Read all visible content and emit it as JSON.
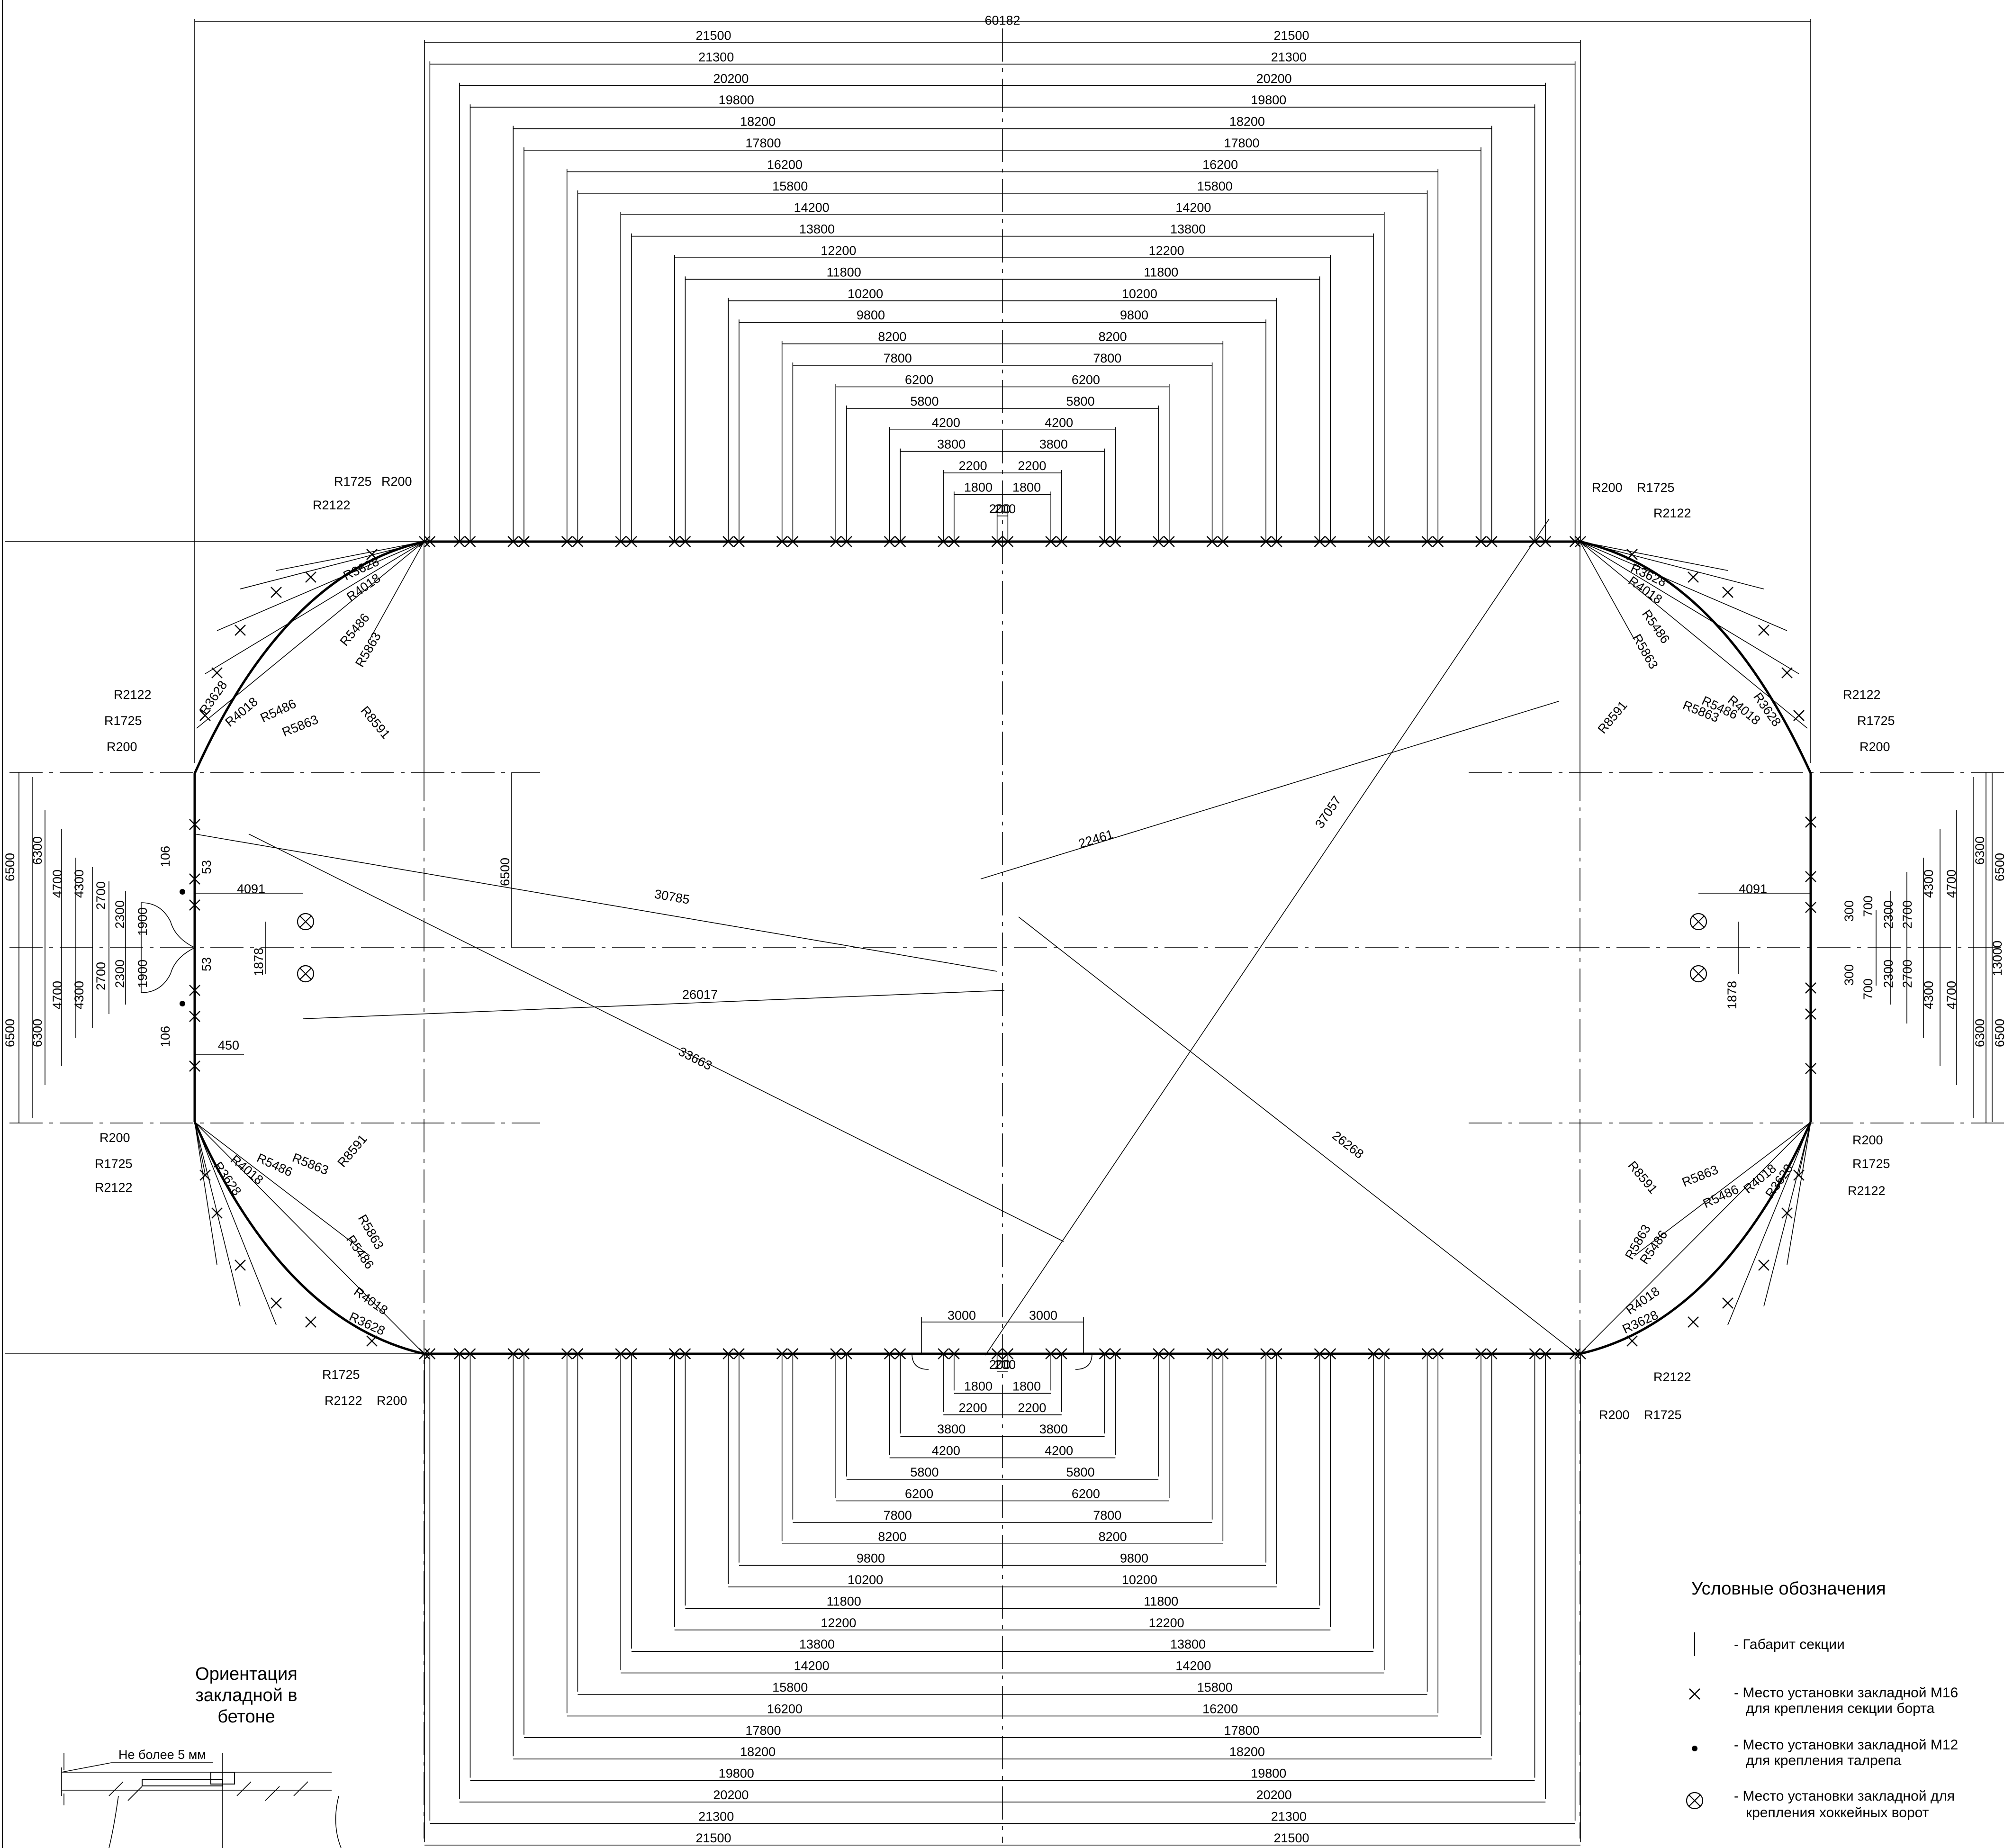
{
  "overall_width": "60182",
  "half_center_label": "13000",
  "top_rows": [
    {
      "left": "21500",
      "right": "21500"
    },
    {
      "left": "21300",
      "right": "21300"
    },
    {
      "left": "20200",
      "right": "20200"
    },
    {
      "left": "19800",
      "right": "19800"
    },
    {
      "left": "18200",
      "right": "18200"
    },
    {
      "left": "17800",
      "right": "17800"
    },
    {
      "left": "16200",
      "right": "16200"
    },
    {
      "left": "15800",
      "right": "15800"
    },
    {
      "left": "14200",
      "right": "14200"
    },
    {
      "left": "13800",
      "right": "13800"
    },
    {
      "left": "12200",
      "right": "12200"
    },
    {
      "left": "11800",
      "right": "11800"
    },
    {
      "left": "10200",
      "right": "10200"
    },
    {
      "left": "9800",
      "right": "9800"
    },
    {
      "left": "8200",
      "right": "8200"
    },
    {
      "left": "7800",
      "right": "7800"
    },
    {
      "left": "6200",
      "right": "6200"
    },
    {
      "left": "5800",
      "right": "5800"
    },
    {
      "left": "4200",
      "right": "4200"
    },
    {
      "left": "3800",
      "right": "3800"
    },
    {
      "left": "2200",
      "right": "2200"
    },
    {
      "left": "1800",
      "right": "1800"
    },
    {
      "left": "200",
      "right": "200"
    }
  ],
  "bottom_rows": [
    {
      "left": "200",
      "right": "200"
    },
    {
      "left": "1800",
      "right": "1800"
    },
    {
      "left": "2200",
      "right": "2200"
    },
    {
      "left": "3800",
      "right": "3800"
    },
    {
      "left": "4200",
      "right": "4200"
    },
    {
      "left": "5800",
      "right": "5800"
    },
    {
      "left": "6200",
      "right": "6200"
    },
    {
      "left": "7800",
      "right": "7800"
    },
    {
      "left": "8200",
      "right": "8200"
    },
    {
      "left": "9800",
      "right": "9800"
    },
    {
      "left": "10200",
      "right": "10200"
    },
    {
      "left": "11800",
      "right": "11800"
    },
    {
      "left": "12200",
      "right": "12200"
    },
    {
      "left": "13800",
      "right": "13800"
    },
    {
      "left": "14200",
      "right": "14200"
    },
    {
      "left": "15800",
      "right": "15800"
    },
    {
      "left": "16200",
      "right": "16200"
    },
    {
      "left": "17800",
      "right": "17800"
    },
    {
      "left": "18200",
      "right": "18200"
    },
    {
      "left": "19800",
      "right": "19800"
    },
    {
      "left": "20200",
      "right": "20200"
    },
    {
      "left": "21300",
      "right": "21300"
    },
    {
      "left": "21500",
      "right": "21500"
    }
  ],
  "gate_dims": {
    "left": "3000",
    "right": "3000"
  },
  "diagonals": [
    "30785",
    "26017",
    "33663",
    "22461",
    "37057",
    "26268"
  ],
  "corner_radii": {
    "r200": "R200",
    "r1725": "R1725",
    "r2122": "R2122",
    "r3628": "R3628",
    "r4018": "R4018",
    "r5486": "R5486",
    "r5863": "R5863",
    "r8591": "R8591"
  },
  "left_side": {
    "outer": [
      "6500",
      "6300",
      "4700",
      "4300",
      "2700",
      "2300",
      "1900"
    ],
    "small": [
      "106",
      "53",
      "53",
      "106"
    ],
    "offset_4091": "4091",
    "offset_1878": "1878",
    "offset_450": "450",
    "inner_6500": "6500"
  },
  "right_side": {
    "outer": [
      "6500",
      "6300",
      "4700",
      "4300",
      "2700",
      "2300",
      "700",
      "300"
    ],
    "offset_4091": "4091",
    "offset_1878": "1878"
  },
  "legend": {
    "title": "Условные обозначения",
    "items": [
      "- Габарит секции",
      "- Место установки закладной М16",
      "для  крепления секции борта",
      "- Место установки закладной М12",
      "для  крепления талрепа",
      "- Место установки закладной для",
      "крепления хоккейных ворот"
    ]
  },
  "orientation": {
    "title_lines": [
      "Ориентация",
      "закладной в",
      "бетоне"
    ],
    "note": "Не более 5 мм"
  }
}
